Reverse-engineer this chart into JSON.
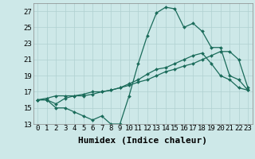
{
  "xlabel": "Humidex (Indice chaleur)",
  "bg_color": "#cde8e8",
  "grid_color": "#b0d0d0",
  "line_color": "#1a6b5a",
  "xlim": [
    -0.5,
    23.5
  ],
  "ylim": [
    13,
    28
  ],
  "xticks": [
    0,
    1,
    2,
    3,
    4,
    5,
    6,
    7,
    8,
    9,
    10,
    11,
    12,
    13,
    14,
    15,
    16,
    17,
    18,
    19,
    20,
    21,
    22,
    23
  ],
  "yticks": [
    13,
    15,
    17,
    19,
    21,
    23,
    25,
    27
  ],
  "series": [
    [
      16,
      16,
      15,
      15,
      14.5,
      14,
      13.5,
      14,
      13,
      13,
      16.5,
      20.5,
      24,
      26.8,
      27.5,
      27.3,
      25,
      25.5,
      24.5,
      22.5,
      22.5,
      19,
      18.5,
      17.2
    ],
    [
      16,
      16,
      15.5,
      16.2,
      16.5,
      16.5,
      16.7,
      17,
      17.2,
      17.5,
      18,
      18.5,
      19.2,
      19.8,
      20,
      20.5,
      21,
      21.5,
      21.8,
      20.5,
      19,
      18.5,
      17.5,
      17.2
    ],
    [
      16,
      16.2,
      16.5,
      16.5,
      16.5,
      16.7,
      17,
      17,
      17.2,
      17.5,
      17.8,
      18.2,
      18.5,
      19,
      19.5,
      19.8,
      20.2,
      20.5,
      21,
      21.5,
      22,
      22,
      21,
      17.5
    ]
  ],
  "tick_fontsize": 6.5,
  "xlabel_fontsize": 8
}
